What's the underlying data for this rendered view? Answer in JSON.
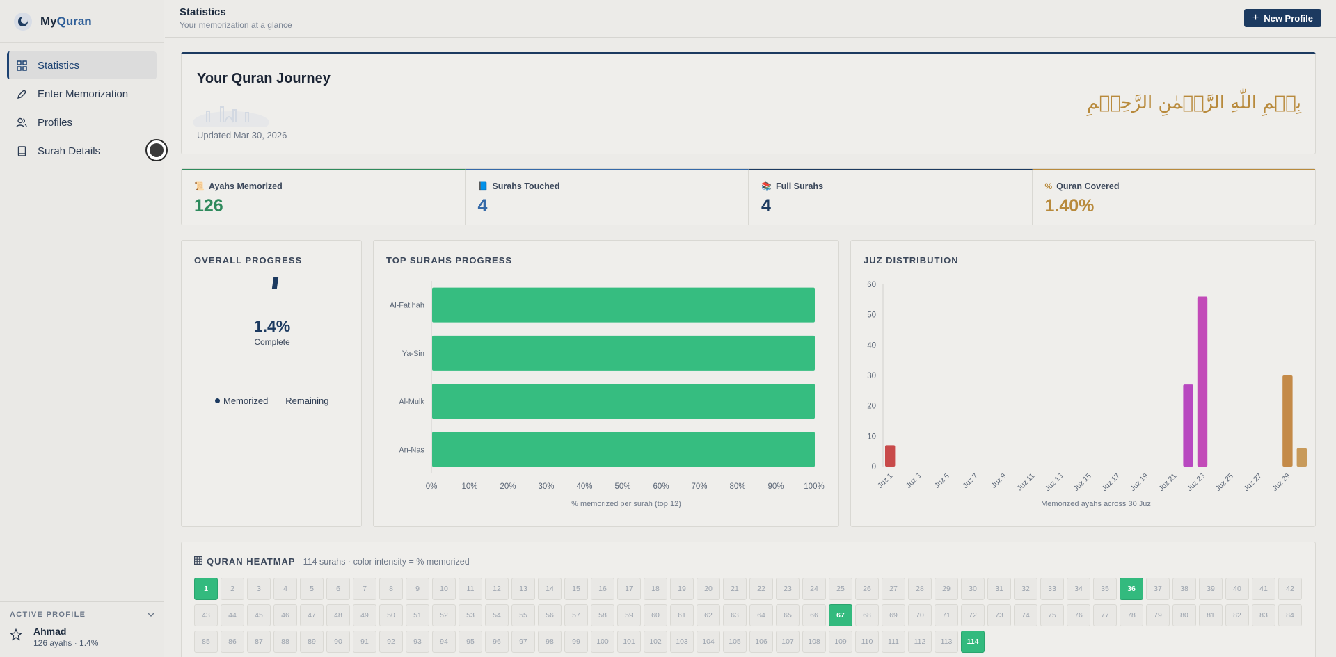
{
  "brand": {
    "prefix": "My",
    "accent": "Quran"
  },
  "sidebar": {
    "items": [
      {
        "label": "Statistics",
        "icon": "grid-icon",
        "active": true
      },
      {
        "label": "Enter Memorization",
        "icon": "pencil-icon",
        "active": false
      },
      {
        "label": "Profiles",
        "icon": "users-icon",
        "active": false
      },
      {
        "label": "Surah Details",
        "icon": "book-icon",
        "active": false
      }
    ],
    "active_profile": {
      "heading": "ACTIVE PROFILE",
      "name": "Ahmad",
      "summary": "126 ayahs · 1.4%"
    }
  },
  "header": {
    "title": "Statistics",
    "subtitle": "Your memorization at a glance",
    "new_profile_label": "New Profile"
  },
  "hero": {
    "title": "Your Quran Journey",
    "updated": "Updated Mar 30, 2026",
    "bismillah": "بِسۡمِ اللّٰهِ الرَّحۡمٰنِ الرَّحِيۡمِ"
  },
  "stats": [
    {
      "label": "Ayahs Memorized",
      "value": "126",
      "color": "#2e8a5c",
      "icon": "scroll-icon"
    },
    {
      "label": "Surahs Touched",
      "value": "4",
      "color": "#3569a8",
      "icon": "book-icon"
    },
    {
      "label": "Full Surahs",
      "value": "4",
      "color": "#1c3a60",
      "icon": "books-icon"
    },
    {
      "label": "Quran Covered",
      "value": "1.40%",
      "color": "#b88a3c",
      "icon": "percent-icon"
    }
  ],
  "overall": {
    "title": "OVERALL PROGRESS",
    "percent": "1.4%",
    "sub": "Complete",
    "legend_memorized": "Memorized",
    "legend_remaining": "Remaining",
    "fraction": 0.014
  },
  "chart_data": [
    {
      "type": "bar",
      "title": "TOP SURAHS PROGRESS",
      "orientation": "horizontal",
      "categories": [
        "Al-Fatihah",
        "Ya-Sin",
        "Al-Mulk",
        "An-Nas"
      ],
      "values": [
        100,
        100,
        100,
        100
      ],
      "xlabel": "% memorized per surah (top 12)",
      "xlim": [
        0,
        100
      ],
      "xticks": [
        "0%",
        "10%",
        "20%",
        "30%",
        "40%",
        "50%",
        "60%",
        "70%",
        "80%",
        "90%",
        "100%"
      ],
      "color": "#36bd80"
    },
    {
      "type": "bar",
      "title": "JUZ DISTRIBUTION",
      "xlabel": "Memorized ayahs across 30 Juz",
      "ylim": [
        0,
        60
      ],
      "yticks": [
        0,
        10,
        20,
        30,
        40,
        50,
        60
      ],
      "xtick_labels": [
        "Juz 1",
        "Juz 3",
        "Juz 5",
        "Juz 7",
        "Juz 9",
        "Juz 11",
        "Juz 13",
        "Juz 15",
        "Juz 17",
        "Juz 19",
        "Juz 21",
        "Juz 23",
        "Juz 25",
        "Juz 27",
        "Juz 29"
      ],
      "values": [
        7,
        0,
        0,
        0,
        0,
        0,
        0,
        0,
        0,
        0,
        0,
        0,
        0,
        0,
        0,
        0,
        0,
        0,
        0,
        0,
        0,
        27,
        56,
        0,
        0,
        0,
        0,
        0,
        30,
        6
      ],
      "colors": {
        "1": "#c84a4a",
        "22": "#b848c0",
        "23": "#c24ab8",
        "29": "#c48a48",
        "30": "#c89a5a"
      }
    }
  ],
  "heatmap": {
    "title": "QURAN HEATMAP",
    "subtitle": "114 surahs · color intensity = % memorized",
    "memorized": [
      1,
      36,
      67,
      114
    ]
  }
}
